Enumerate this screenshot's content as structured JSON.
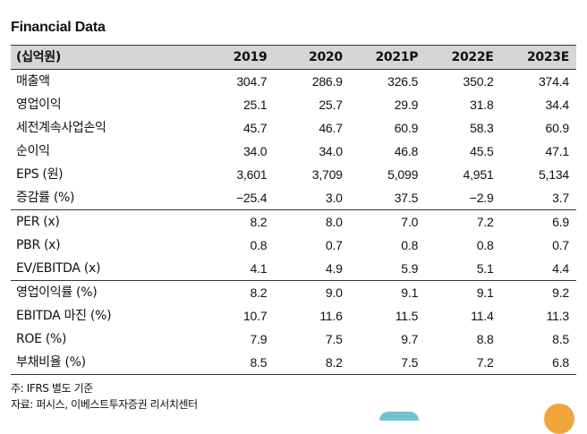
{
  "title": "Financial Data",
  "header": {
    "label": "(십억원)",
    "years": [
      "2019",
      "2020",
      "2021P",
      "2022E",
      "2023E"
    ]
  },
  "rows": [
    {
      "label": "매출액",
      "values": [
        "304.7",
        "286.9",
        "326.5",
        "350.2",
        "374.4"
      ]
    },
    {
      "label": "영업이익",
      "values": [
        "25.1",
        "25.7",
        "29.9",
        "31.8",
        "34.4"
      ]
    },
    {
      "label": "세전계속사업손익",
      "values": [
        "45.7",
        "46.7",
        "60.9",
        "58.3",
        "60.9"
      ]
    },
    {
      "label": "순이익",
      "values": [
        "34.0",
        "34.0",
        "46.8",
        "45.5",
        "47.1"
      ]
    },
    {
      "label": "EPS (원)",
      "values": [
        "3,601",
        "3,709",
        "5,099",
        "4,951",
        "5,134"
      ]
    },
    {
      "label": "증감률 (%)",
      "values": [
        "−25.4",
        "3.0",
        "37.5",
        "−2.9",
        "3.7"
      ]
    },
    {
      "label": "PER (x)",
      "values": [
        "8.2",
        "8.0",
        "7.0",
        "7.2",
        "6.9"
      ]
    },
    {
      "label": "PBR (x)",
      "values": [
        "0.8",
        "0.7",
        "0.8",
        "0.8",
        "0.7"
      ]
    },
    {
      "label": "EV/EBITDA (x)",
      "values": [
        "4.1",
        "4.9",
        "5.9",
        "5.1",
        "4.4"
      ]
    },
    {
      "label": "영업이익률 (%)",
      "values": [
        "8.2",
        "9.0",
        "9.1",
        "9.1",
        "9.2"
      ]
    },
    {
      "label": "EBITDA 마진 (%)",
      "values": [
        "10.7",
        "11.6",
        "11.5",
        "11.4",
        "11.3"
      ]
    },
    {
      "label": "ROE (%)",
      "values": [
        "7.9",
        "7.5",
        "9.7",
        "8.8",
        "8.5"
      ]
    },
    {
      "label": "부채비율 (%)",
      "values": [
        "8.5",
        "8.2",
        "7.5",
        "7.2",
        "6.8"
      ]
    }
  ],
  "notes": {
    "note1": "주: IFRS 별도 기준",
    "note2": "자료: 퍼시스, 이베스트투자증권 리서치센터"
  }
}
